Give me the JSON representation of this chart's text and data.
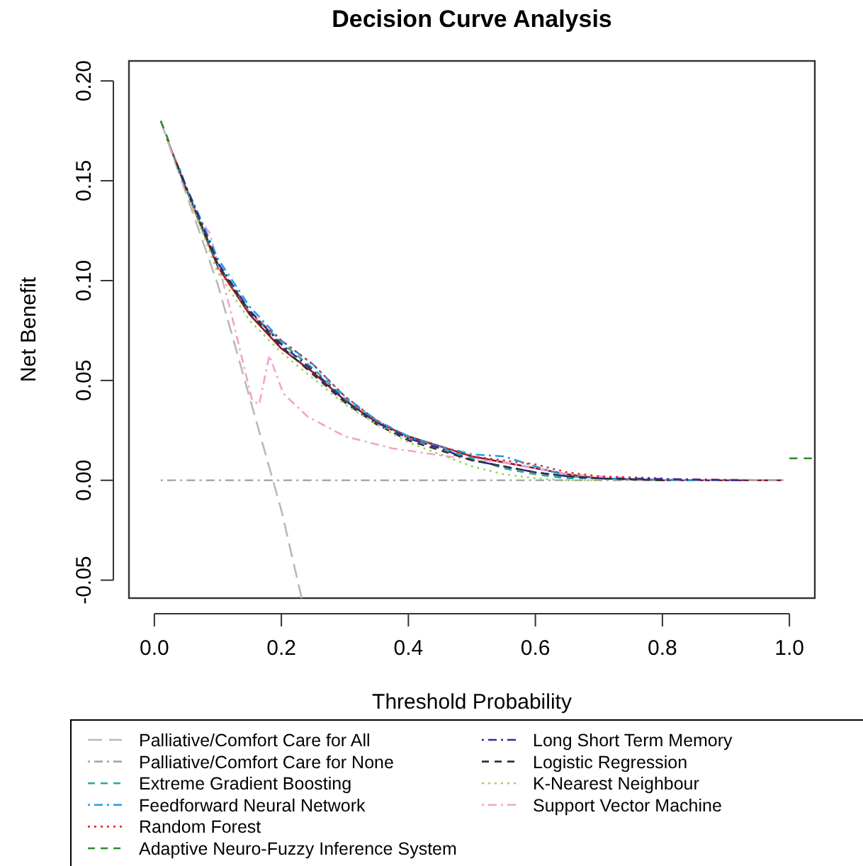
{
  "chart_data": {
    "type": "line",
    "title": "Decision Curve Analysis",
    "xlabel": "Threshold Probability",
    "ylabel": "Net Benefit",
    "xlim": [
      -0.04,
      1.04
    ],
    "ylim": [
      -0.059,
      0.21
    ],
    "xticks": [
      {
        "value": 0,
        "label": "0.0"
      },
      0.2,
      0.4,
      0.6,
      0.8,
      {
        "value": 1,
        "label": "1.0"
      }
    ],
    "yticks": [
      -0.05,
      {
        "value": 0,
        "label": "0.00"
      },
      0.05,
      {
        "value": 0.1,
        "label": "0.10"
      },
      0.15,
      {
        "value": 0.2,
        "label": "0.20"
      }
    ],
    "grid": false,
    "legend": "bottom",
    "marker": "none",
    "series": [
      {
        "name": "Palliative/Comfort Care for All",
        "color": "#b8b8b8",
        "line_style": "longdash",
        "x": [
          0.01,
          0.1,
          0.2,
          0.232
        ],
        "values": [
          0.18,
          0.098,
          -0.015,
          -0.059
        ]
      },
      {
        "name": "Palliative/Comfort Care for None",
        "color": "#a8a8a8",
        "line_style": "dashdot",
        "x": [
          0.01,
          0.99
        ],
        "values": [
          0,
          0
        ]
      },
      {
        "name": "Extreme Gradient Boosting",
        "color": "#2ba5a5",
        "line_style": "dashed",
        "x": [
          0.03,
          0.05,
          0.07,
          0.1,
          0.15,
          0.2,
          0.25,
          0.3,
          0.35,
          0.4,
          0.45,
          0.5,
          0.55,
          0.6,
          0.65,
          0.7,
          0.74
        ],
        "values": [
          0.163,
          0.146,
          0.131,
          0.108,
          0.085,
          0.069,
          0.056,
          0.041,
          0.03,
          0.021,
          0.016,
          0.011,
          0.006,
          0.003,
          0.001,
          0.001,
          0.0005
        ]
      },
      {
        "name": "Feedforward Neural Network",
        "color": "#1e9fe8",
        "line_style": "dashdot",
        "x": [
          0.04,
          0.05,
          0.07,
          0.1,
          0.15,
          0.2,
          0.25,
          0.3,
          0.35,
          0.4,
          0.45,
          0.5,
          0.55,
          0.6,
          0.65,
          0.7,
          0.86
        ],
        "values": [
          0.156,
          0.147,
          0.133,
          0.111,
          0.087,
          0.07,
          0.058,
          0.042,
          0.03,
          0.022,
          0.017,
          0.013,
          0.012,
          0.007,
          0.002,
          0.001,
          0
        ]
      },
      {
        "name": "Random Forest",
        "color": "#e8302a",
        "line_style": "dotted",
        "x": [
          0.03,
          0.05,
          0.07,
          0.1,
          0.15,
          0.2,
          0.25,
          0.3,
          0.35,
          0.4,
          0.45,
          0.5,
          0.55,
          0.6,
          0.65,
          0.7,
          0.8
        ],
        "values": [
          0.163,
          0.146,
          0.13,
          0.106,
          0.084,
          0.07,
          0.058,
          0.042,
          0.03,
          0.021,
          0.017,
          0.012,
          0.01,
          0.008,
          0.004,
          0.002,
          0.001
        ]
      },
      {
        "name": "Adaptive Neuro-Fuzzy Inference System",
        "color": "#2e8b2e",
        "line_style": "dashed",
        "x": [
          0.01,
          0.025,
          null,
          1.0,
          1.04
        ],
        "values": [
          0.18,
          0.168,
          null,
          0.011,
          0.011
        ]
      },
      {
        "color": "#8b1a2a",
        "line_style": "solid",
        "x": [
          0.02,
          0.05,
          0.07,
          0.1,
          0.15,
          0.2,
          0.25,
          0.3,
          0.35,
          0.4,
          0.45,
          0.5,
          0.55,
          0.6,
          0.65,
          0.7,
          0.8,
          0.9,
          0.99
        ],
        "values": [
          0.171,
          0.146,
          0.13,
          0.107,
          0.083,
          0.066,
          0.054,
          0.04,
          0.029,
          0.022,
          0.017,
          0.012,
          0.009,
          0.006,
          0.003,
          0.001,
          0,
          0,
          0
        ]
      },
      {
        "name": "Long Short Term Memory",
        "color": "#2c2c9c",
        "line_style": "dashdot",
        "x": [
          0.04,
          0.05,
          0.07,
          0.1,
          0.15,
          0.2,
          0.25,
          0.3,
          0.35,
          0.4,
          0.45,
          0.5,
          0.55,
          0.6,
          0.65,
          0.7,
          0.93
        ],
        "values": [
          0.155,
          0.147,
          0.132,
          0.109,
          0.085,
          0.068,
          0.055,
          0.04,
          0.029,
          0.021,
          0.016,
          0.01,
          0.007,
          0.004,
          0.002,
          0.001,
          0
        ]
      },
      {
        "name": "Logistic Regression",
        "color": "#333333",
        "line_style": "dashed",
        "x": [
          0.035,
          0.05,
          0.07,
          0.1,
          0.15,
          0.2,
          0.25,
          0.3,
          0.35,
          0.4,
          0.45,
          0.5,
          0.55,
          0.6,
          0.65,
          0.7,
          0.8
        ],
        "values": [
          0.159,
          0.146,
          0.131,
          0.108,
          0.084,
          0.067,
          0.053,
          0.039,
          0.028,
          0.02,
          0.015,
          0.01,
          0.007,
          0.004,
          0.002,
          0.001,
          0
        ]
      },
      {
        "name": "K-Nearest Neighbour",
        "color": "#9ad65a",
        "line_style": "dotted",
        "x": [
          0.05,
          0.07,
          0.1,
          0.15,
          0.2,
          0.25,
          0.3,
          0.35,
          0.4,
          0.45,
          0.5,
          0.55,
          0.6,
          0.65,
          0.7
        ],
        "values": [
          0.145,
          0.129,
          0.104,
          0.08,
          0.064,
          0.051,
          0.038,
          0.028,
          0.019,
          0.013,
          0.007,
          0.003,
          0.001,
          0,
          0
        ]
      },
      {
        "name": "Support Vector Machine",
        "color": "#f2a2d2",
        "line_style": "dashdot",
        "x": [
          0.06,
          0.07,
          0.087,
          0.12,
          0.154,
          0.165,
          0.181,
          0.203,
          0.241,
          0.3,
          0.375,
          0.47,
          0.55,
          0.65,
          0.75,
          0.99
        ],
        "values": [
          0.138,
          0.131,
          0.124,
          0.085,
          0.04,
          0.038,
          0.0625,
          0.0435,
          0.032,
          0.022,
          0.016,
          0.0116,
          0.009,
          0.003,
          0.001,
          0
        ]
      }
    ]
  }
}
